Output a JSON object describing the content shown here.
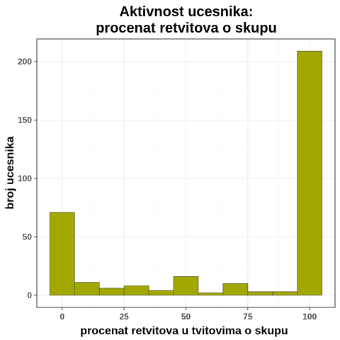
{
  "chart_data": {
    "type": "bar",
    "title_lines": [
      "Aktivnost ucesnika:",
      "procenat retvitova o skupu"
    ],
    "xlabel": "procenat retvitova u tvitovima o skupu",
    "ylabel": "broj ucesnika",
    "xlim": [
      -5,
      105
    ],
    "ylim": [
      0,
      210
    ],
    "x_ticks": [
      0,
      25,
      50,
      75,
      100
    ],
    "y_ticks": [
      0,
      50,
      100,
      150,
      200
    ],
    "grid": true,
    "legend": "none",
    "bin_width": 10,
    "bins": [
      {
        "start": -5,
        "end": 5,
        "count": 71
      },
      {
        "start": 5,
        "end": 15,
        "count": 11
      },
      {
        "start": 15,
        "end": 25,
        "count": 6
      },
      {
        "start": 25,
        "end": 35,
        "count": 8
      },
      {
        "start": 35,
        "end": 45,
        "count": 4
      },
      {
        "start": 45,
        "end": 55,
        "count": 16
      },
      {
        "start": 55,
        "end": 65,
        "count": 2
      },
      {
        "start": 65,
        "end": 75,
        "count": 10
      },
      {
        "start": 75,
        "end": 85,
        "count": 3
      },
      {
        "start": 85,
        "end": 95,
        "count": 3
      },
      {
        "start": 95,
        "end": 105,
        "count": 209
      }
    ],
    "colors": {
      "bar_fill": "#a3a800",
      "bar_stroke": "#5e5e3a",
      "grid_major": "#ebebeb",
      "grid_minor": "#f4f4f4",
      "panel_border": "#333333"
    }
  }
}
